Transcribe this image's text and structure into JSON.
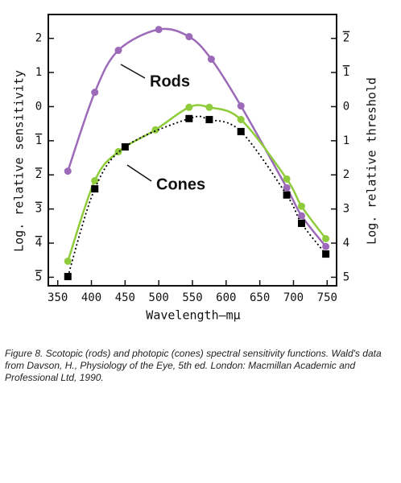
{
  "chart_data": {
    "type": "line",
    "ylabel": "Log. relative sensitivity",
    "y2label": "Log. relative threshold",
    "xlabel": "Wavelength—mμ",
    "xlim": [
      336,
      764
    ],
    "xticks": [
      350,
      400,
      450,
      500,
      550,
      600,
      650,
      700,
      750
    ],
    "ylim": [
      -5.25,
      2.7
    ],
    "yticks": [
      2,
      1,
      0,
      {
        "value": -1,
        "label": "1"
      },
      {
        "value": -2,
        "label": "2"
      },
      {
        "value": -3,
        "label": "3"
      },
      {
        "value": -4,
        "label": "4"
      },
      {
        "value": -5,
        "label": "5"
      }
    ],
    "y2lim": [
      5.25,
      -2.7
    ],
    "y2ticks": [
      {
        "value": -2,
        "label": "2"
      },
      {
        "value": -1,
        "label": "1"
      },
      0,
      1,
      2,
      3,
      4,
      5
    ],
    "series": [
      {
        "name": "Rods",
        "color": "#9c6ab8",
        "marker": "circle",
        "line": "solid",
        "x": [
          365,
          405,
          440,
          500,
          545,
          578,
          622,
          690,
          712,
          748
        ],
        "values": [
          -1.89,
          0.42,
          1.65,
          2.26,
          2.05,
          1.39,
          0.02,
          -2.38,
          -3.2,
          -4.1
        ]
      },
      {
        "name": "Cones",
        "color": "#8fcc3c",
        "marker": "circle",
        "line": "solid",
        "x": [
          365,
          405,
          440,
          495,
          545,
          575,
          622,
          690,
          712,
          748
        ],
        "values": [
          -4.53,
          -2.17,
          -1.32,
          -0.68,
          -0.02,
          -0.02,
          -0.38,
          -2.12,
          -2.92,
          -3.87
        ]
      },
      {
        "color": "#000000",
        "marker": "square",
        "line": "dotted",
        "axis": "y2",
        "x": [
          365,
          405,
          450,
          545,
          575,
          622,
          690,
          712,
          748
        ],
        "values": [
          4.98,
          2.41,
          1.18,
          0.35,
          0.38,
          0.73,
          2.59,
          3.42,
          4.32
        ]
      }
    ],
    "caption": "Figure 8. Scotopic (rods) and photopic (cones) spectral sensitivity functions. Wald's data from Davson, H., Physiology of the Eye, 5th ed. London: Macmillan Academic and Professional Ltd, 1990."
  }
}
